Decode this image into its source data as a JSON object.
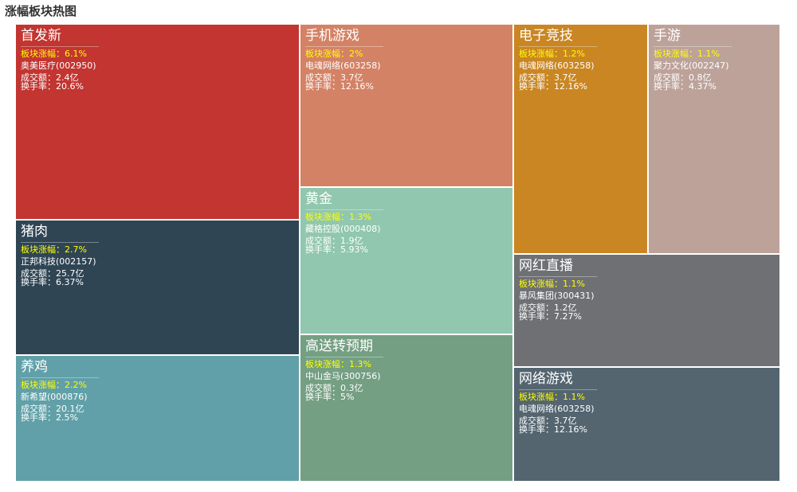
{
  "title": "涨幅板块热图",
  "chart_data": {
    "type": "treemap",
    "title": "涨幅板块热图",
    "rise_label": "板块涨幅：",
    "turnover_label": "成交额：",
    "rate_label": "换手率：",
    "items": [
      {
        "name": "首发新",
        "rise": "6.1%",
        "stock": "奥美医疗(002950)",
        "turnover": "2.4亿",
        "rate": "20.6%",
        "color": "#c23531"
      },
      {
        "name": "猪肉",
        "rise": "2.7%",
        "stock": "正邦科技(002157)",
        "turnover": "25.7亿",
        "rate": "6.37%",
        "color": "#2f4554"
      },
      {
        "name": "养鸡",
        "rise": "2.2%",
        "stock": "新希望(000876)",
        "turnover": "20.1亿",
        "rate": "2.5%",
        "color": "#61a0a8"
      },
      {
        "name": "手机游戏",
        "rise": "2%",
        "stock": "电魂网络(603258)",
        "turnover": "3.7亿",
        "rate": "12.16%",
        "color": "#d48265"
      },
      {
        "name": "黄金",
        "rise": "1.3%",
        "stock": "藏格控股(000408)",
        "turnover": "1.9亿",
        "rate": "5.93%",
        "color": "#91c7ae"
      },
      {
        "name": "高送转预期",
        "rise": "1.3%",
        "stock": "中山金马(300756)",
        "turnover": "0.3亿",
        "rate": "5%",
        "color": "#749f83"
      },
      {
        "name": "电子竞技",
        "rise": "1.2%",
        "stock": "电魂网络(603258)",
        "turnover": "3.7亿",
        "rate": "12.16%",
        "color": "#ca8622"
      },
      {
        "name": "手游",
        "rise": "1.1%",
        "stock": "聚力文化(002247)",
        "turnover": "0.8亿",
        "rate": "4.37%",
        "color": "#bda29a"
      },
      {
        "name": "网红直播",
        "rise": "1.1%",
        "stock": "暴风集团(300431)",
        "turnover": "1.2亿",
        "rate": "7.27%",
        "color": "#6e7074"
      },
      {
        "name": "网络游戏",
        "rise": "1.1%",
        "stock": "电魂网络(603258)",
        "turnover": "3.7亿",
        "rate": "12.16%",
        "color": "#546570"
      }
    ]
  }
}
